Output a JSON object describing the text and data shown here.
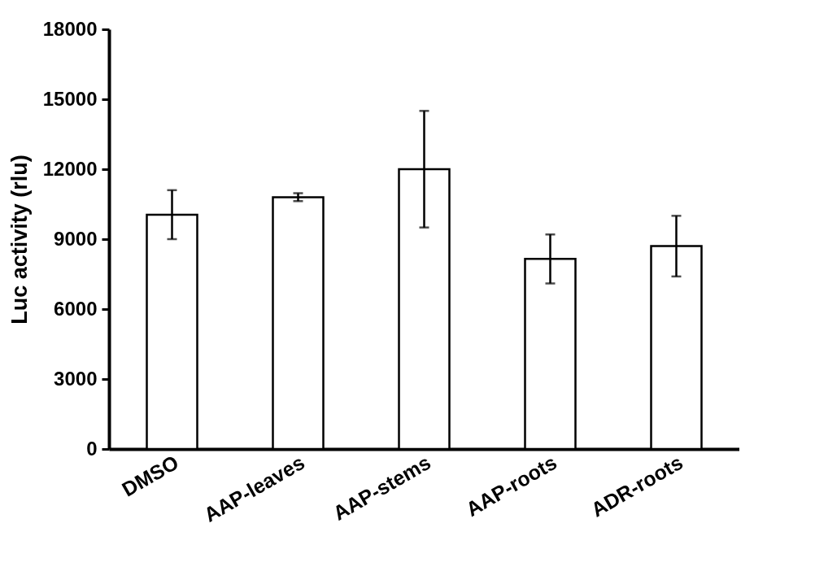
{
  "chart_data": {
    "type": "bar",
    "ylabel": "Luc activity (rlu)",
    "categories": [
      "DMSO",
      "AAP-leaves",
      "AAP-stems",
      "AAP-roots",
      "ADR-roots"
    ],
    "values": [
      10050,
      10800,
      12000,
      8150,
      8700
    ],
    "errors": [
      1050,
      170,
      2500,
      1050,
      1300
    ],
    "color": "#ffffff",
    "ylim": [
      0,
      18000
    ],
    "yticks": [
      0,
      3000,
      6000,
      9000,
      12000,
      15000,
      18000
    ],
    "grid": false
  }
}
